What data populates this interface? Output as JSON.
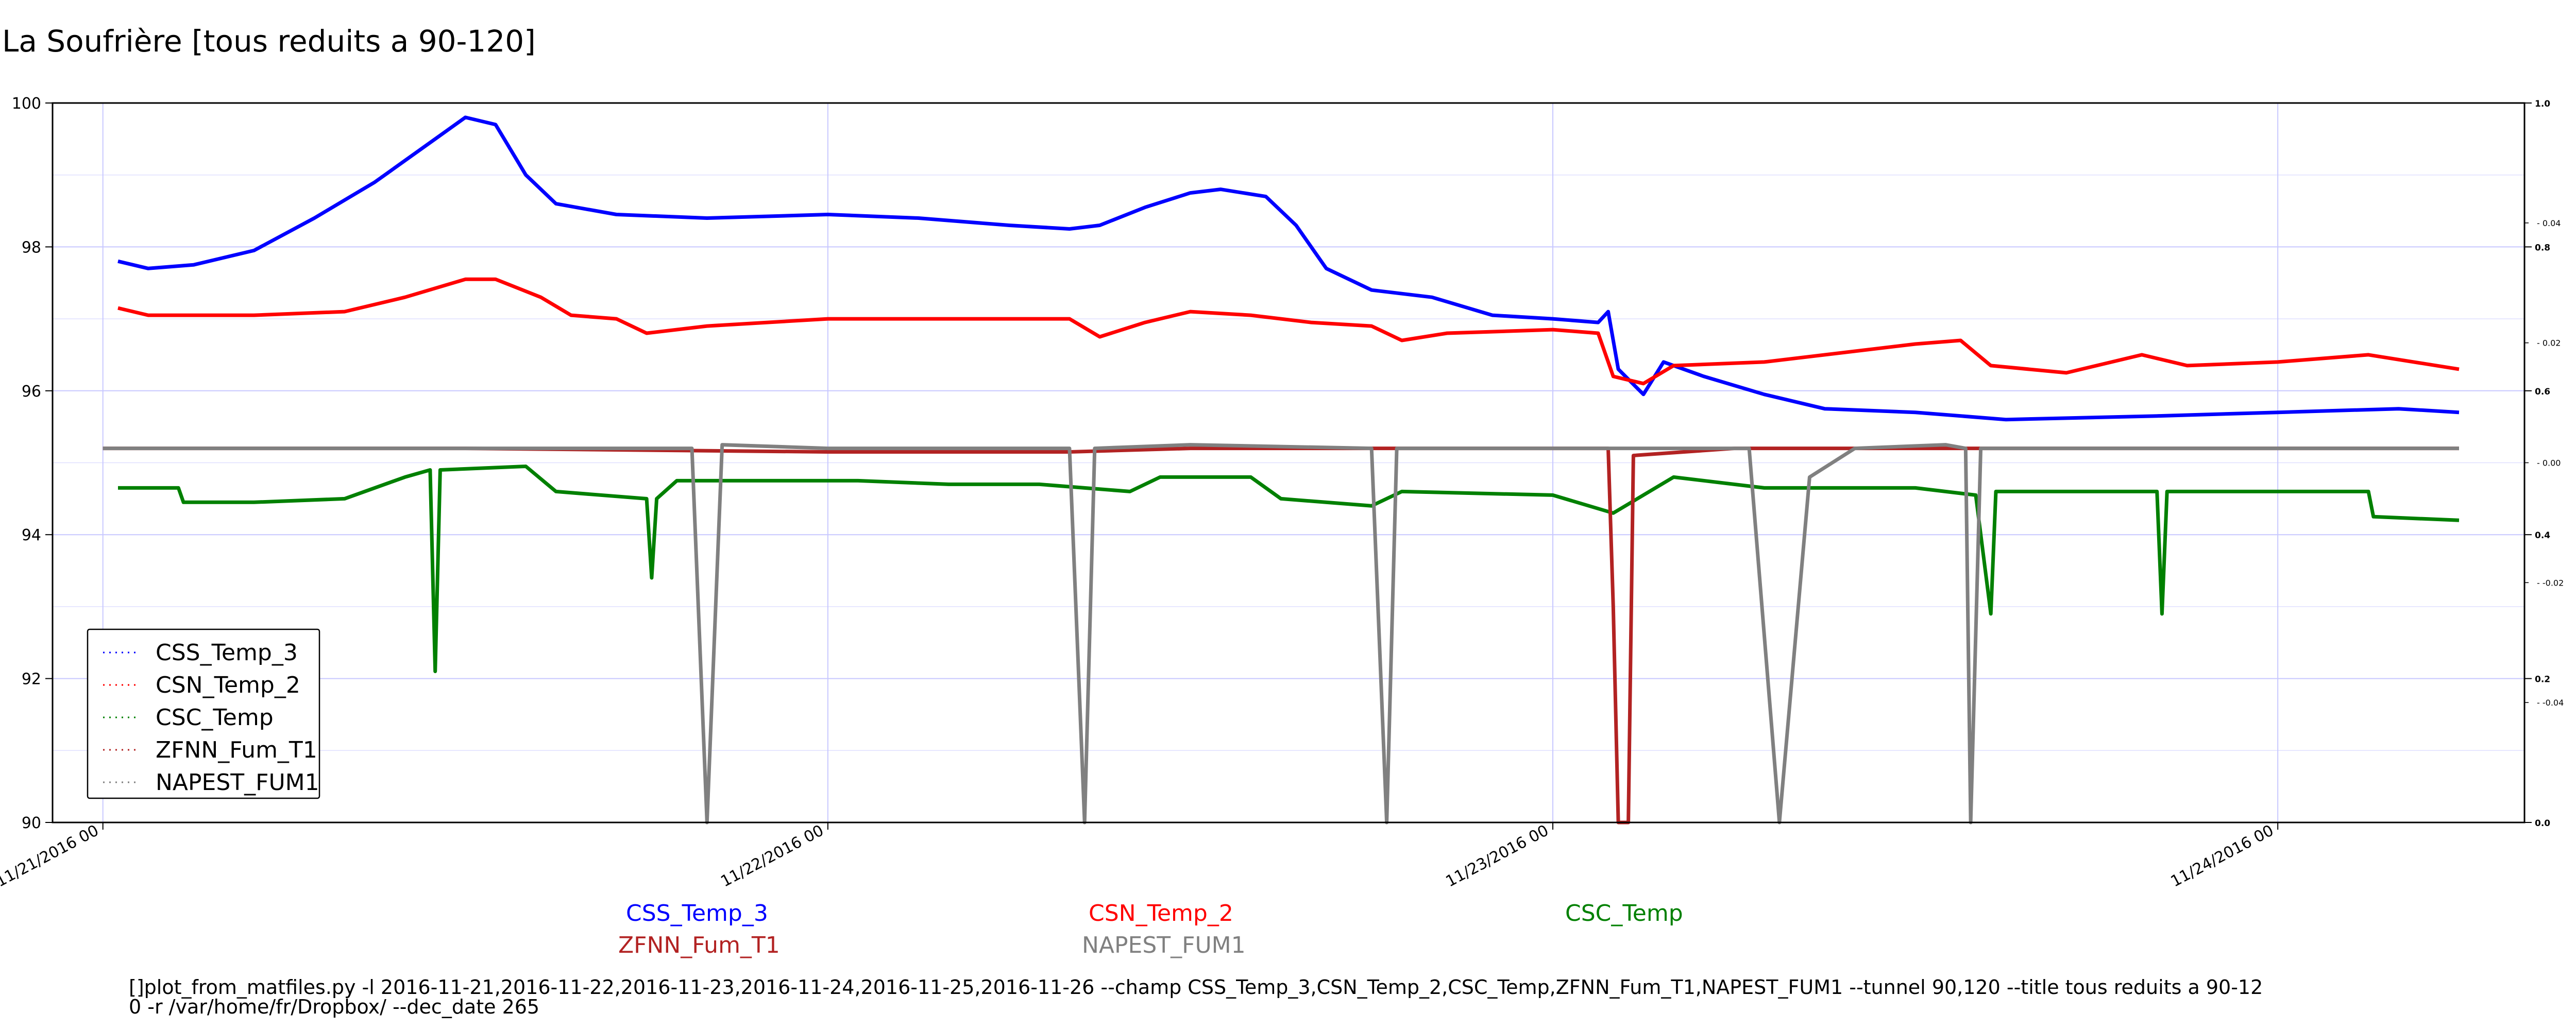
{
  "page_title": "La Soufrière [tous reduits a 90-120]",
  "command_text": {
    "line1": "[]plot_from_matfiles.py -l 2016-11-21,2016-11-22,2016-11-23,2016-11-24,2016-11-25,2016-11-26 --champ CSS_Temp_3,CSN_Temp_2,CSC_Temp,ZFNN_Fum_T1,NAPEST_FUM1 --tunnel 90,120 --title tous reduits a 90-12",
    "line2": "0 -r /var/home/fr/Dropbox/ --dec_date 265"
  },
  "bottom_legend": [
    {
      "label": "CSS_Temp_3",
      "color": "#0000ff"
    },
    {
      "label": "CSN_Temp_2",
      "color": "#ff0000"
    },
    {
      "label": "CSC_Temp",
      "color": "#008000"
    },
    {
      "label": "ZFNN_Fum_T1",
      "color": "#b22222"
    },
    {
      "label": "NAPEST_FUM1",
      "color": "#808080"
    }
  ],
  "chart_data": {
    "type": "line",
    "title": "La Soufrière [tous reduits a 90-120]",
    "x_type": "date",
    "xlim": [
      "2016-11-20T22:20",
      "2016-11-24T08:10"
    ],
    "ylim": [
      90,
      100
    ],
    "y_ticks": [
      90,
      92,
      94,
      96,
      98,
      100
    ],
    "x_ticks": [
      "2016-11-21T00:00",
      "2016-11-22T00:00",
      "2016-11-23T00:00",
      "2016-11-24T00:00"
    ],
    "x_tick_labels": [
      "11/21/2016 00",
      "11/22/2016 00",
      "11/23/2016 00",
      "11/24/2016 00"
    ],
    "y2_ticks": [
      "0.0",
      "0.2",
      "0.4",
      "0.6",
      "0.8",
      "1.0"
    ],
    "y2_minor_ticks": [
      "-0.04",
      "-0.02",
      "0.00",
      "0.02",
      "0.04"
    ],
    "grid": true,
    "legend_position": "bottom-left",
    "series": [
      {
        "name": "CSS_Temp_3",
        "color": "#0000ff",
        "points": [
          [
            "2016-11-21T00:30",
            97.8
          ],
          [
            "2016-11-21T01:30",
            97.7
          ],
          [
            "2016-11-21T03:00",
            97.75
          ],
          [
            "2016-11-21T05:00",
            97.95
          ],
          [
            "2016-11-21T07:00",
            98.4
          ],
          [
            "2016-11-21T09:00",
            98.9
          ],
          [
            "2016-11-21T11:00",
            99.5
          ],
          [
            "2016-11-21T12:00",
            99.8
          ],
          [
            "2016-11-21T13:00",
            99.7
          ],
          [
            "2016-11-21T14:00",
            99.0
          ],
          [
            "2016-11-21T15:00",
            98.6
          ],
          [
            "2016-11-21T17:00",
            98.45
          ],
          [
            "2016-11-21T20:00",
            98.4
          ],
          [
            "2016-11-22T00:00",
            98.45
          ],
          [
            "2016-11-22T03:00",
            98.4
          ],
          [
            "2016-11-22T06:00",
            98.3
          ],
          [
            "2016-11-22T08:00",
            98.25
          ],
          [
            "2016-11-22T09:00",
            98.3
          ],
          [
            "2016-11-22T10:30",
            98.55
          ],
          [
            "2016-11-22T12:00",
            98.75
          ],
          [
            "2016-11-22T13:00",
            98.8
          ],
          [
            "2016-11-22T14:30",
            98.7
          ],
          [
            "2016-11-22T15:30",
            98.3
          ],
          [
            "2016-11-22T16:30",
            97.7
          ],
          [
            "2016-11-22T18:00",
            97.4
          ],
          [
            "2016-11-22T20:00",
            97.3
          ],
          [
            "2016-11-22T22:00",
            97.05
          ],
          [
            "2016-11-23T00:00",
            97.0
          ],
          [
            "2016-11-23T01:30",
            96.95
          ],
          [
            "2016-11-23T01:50",
            97.1
          ],
          [
            "2016-11-23T02:10",
            96.3
          ],
          [
            "2016-11-23T03:00",
            95.95
          ],
          [
            "2016-11-23T03:40",
            96.4
          ],
          [
            "2016-11-23T05:00",
            96.2
          ],
          [
            "2016-11-23T07:00",
            95.95
          ],
          [
            "2016-11-23T09:00",
            95.75
          ],
          [
            "2016-11-23T12:00",
            95.7
          ],
          [
            "2016-11-23T15:00",
            95.6
          ],
          [
            "2016-11-23T20:00",
            95.65
          ],
          [
            "2016-11-24T00:00",
            95.7
          ],
          [
            "2016-11-24T04:00",
            95.75
          ],
          [
            "2016-11-24T06:00",
            95.7
          ]
        ]
      },
      {
        "name": "CSN_Temp_2",
        "color": "#ff0000",
        "points": [
          [
            "2016-11-21T00:30",
            97.15
          ],
          [
            "2016-11-21T01:30",
            97.05
          ],
          [
            "2016-11-21T05:00",
            97.05
          ],
          [
            "2016-11-21T08:00",
            97.1
          ],
          [
            "2016-11-21T10:00",
            97.3
          ],
          [
            "2016-11-21T12:00",
            97.55
          ],
          [
            "2016-11-21T13:00",
            97.55
          ],
          [
            "2016-11-21T14:30",
            97.3
          ],
          [
            "2016-11-21T15:30",
            97.05
          ],
          [
            "2016-11-21T17:00",
            97.0
          ],
          [
            "2016-11-21T18:00",
            96.8
          ],
          [
            "2016-11-21T20:00",
            96.9
          ],
          [
            "2016-11-22T00:00",
            97.0
          ],
          [
            "2016-11-22T04:00",
            97.0
          ],
          [
            "2016-11-22T08:00",
            97.0
          ],
          [
            "2016-11-22T09:00",
            96.75
          ],
          [
            "2016-11-22T10:30",
            96.95
          ],
          [
            "2016-11-22T12:00",
            97.1
          ],
          [
            "2016-11-22T14:00",
            97.05
          ],
          [
            "2016-11-22T16:00",
            96.95
          ],
          [
            "2016-11-22T18:00",
            96.9
          ],
          [
            "2016-11-22T19:00",
            96.7
          ],
          [
            "2016-11-22T20:30",
            96.8
          ],
          [
            "2016-11-23T00:00",
            96.85
          ],
          [
            "2016-11-23T01:30",
            96.8
          ],
          [
            "2016-11-23T02:00",
            96.2
          ],
          [
            "2016-11-23T03:00",
            96.1
          ],
          [
            "2016-11-23T04:00",
            96.35
          ],
          [
            "2016-11-23T07:00",
            96.4
          ],
          [
            "2016-11-23T12:00",
            96.65
          ],
          [
            "2016-11-23T13:30",
            96.7
          ],
          [
            "2016-11-23T14:30",
            96.35
          ],
          [
            "2016-11-23T17:00",
            96.25
          ],
          [
            "2016-11-23T19:30",
            96.5
          ],
          [
            "2016-11-23T21:00",
            96.35
          ],
          [
            "2016-11-24T00:00",
            96.4
          ],
          [
            "2016-11-24T03:00",
            96.5
          ],
          [
            "2016-11-24T04:30",
            96.4
          ],
          [
            "2016-11-24T06:00",
            96.3
          ]
        ]
      },
      {
        "name": "CSC_Temp",
        "color": "#008000",
        "points": [
          [
            "2016-11-21T00:30",
            94.65
          ],
          [
            "2016-11-21T02:30",
            94.65
          ],
          [
            "2016-11-21T02:40",
            94.45
          ],
          [
            "2016-11-21T05:00",
            94.45
          ],
          [
            "2016-11-21T08:00",
            94.5
          ],
          [
            "2016-11-21T10:00",
            94.8
          ],
          [
            "2016-11-21T10:50",
            94.9
          ],
          [
            "2016-11-21T11:00",
            92.1
          ],
          [
            "2016-11-21T11:10",
            94.9
          ],
          [
            "2016-11-21T14:00",
            94.95
          ],
          [
            "2016-11-21T15:00",
            94.6
          ],
          [
            "2016-11-21T18:00",
            94.5
          ],
          [
            "2016-11-21T18:10",
            93.4
          ],
          [
            "2016-11-21T18:20",
            94.5
          ],
          [
            "2016-11-21T19:00",
            94.75
          ],
          [
            "2016-11-22T01:00",
            94.75
          ],
          [
            "2016-11-22T04:00",
            94.7
          ],
          [
            "2016-11-22T07:00",
            94.7
          ],
          [
            "2016-11-22T10:00",
            94.6
          ],
          [
            "2016-11-22T11:00",
            94.8
          ],
          [
            "2016-11-22T14:00",
            94.8
          ],
          [
            "2016-11-22T15:00",
            94.5
          ],
          [
            "2016-11-22T18:00",
            94.4
          ],
          [
            "2016-11-22T19:00",
            94.6
          ],
          [
            "2016-11-23T00:00",
            94.55
          ],
          [
            "2016-11-23T02:00",
            94.3
          ],
          [
            "2016-11-23T04:00",
            94.8
          ],
          [
            "2016-11-23T07:00",
            94.65
          ],
          [
            "2016-11-23T12:00",
            94.65
          ],
          [
            "2016-11-23T14:00",
            94.55
          ],
          [
            "2016-11-23T14:30",
            92.9
          ],
          [
            "2016-11-23T14:40",
            94.6
          ],
          [
            "2016-11-23T20:00",
            94.6
          ],
          [
            "2016-11-23T20:10",
            92.9
          ],
          [
            "2016-11-23T20:20",
            94.6
          ],
          [
            "2016-11-24T03:00",
            94.6
          ],
          [
            "2016-11-24T03:10",
            94.25
          ],
          [
            "2016-11-24T06:00",
            94.2
          ]
        ]
      },
      {
        "name": "ZFNN_Fum_T1",
        "color": "#b22222",
        "points": [
          [
            "2016-11-21T00:00",
            95.2
          ],
          [
            "2016-11-21T12:00",
            95.2
          ],
          [
            "2016-11-22T00:00",
            95.15
          ],
          [
            "2016-11-22T08:00",
            95.15
          ],
          [
            "2016-11-22T12:00",
            95.2
          ],
          [
            "2016-11-23T01:50",
            95.2
          ],
          [
            "2016-11-23T02:00",
            93.0
          ],
          [
            "2016-11-23T02:10",
            90.0
          ],
          [
            "2016-11-23T02:30",
            90.0
          ],
          [
            "2016-11-23T02:40",
            95.1
          ],
          [
            "2016-11-23T06:00",
            95.2
          ],
          [
            "2016-11-24T00:00",
            95.2
          ],
          [
            "2016-11-24T06:00",
            95.2
          ]
        ]
      },
      {
        "name": "NAPEST_FUM1",
        "color": "#808080",
        "points": [
          [
            "2016-11-21T00:00",
            95.2
          ],
          [
            "2016-11-21T10:00",
            95.2
          ],
          [
            "2016-11-21T17:00",
            95.2
          ],
          [
            "2016-11-21T19:30",
            95.2
          ],
          [
            "2016-11-21T20:00",
            90.0
          ],
          [
            "2016-11-21T20:30",
            95.25
          ],
          [
            "2016-11-22T00:00",
            95.2
          ],
          [
            "2016-11-22T08:00",
            95.2
          ],
          [
            "2016-11-22T08:30",
            90.0
          ],
          [
            "2016-11-22T08:50",
            95.2
          ],
          [
            "2016-11-22T12:00",
            95.25
          ],
          [
            "2016-11-22T18:00",
            95.2
          ],
          [
            "2016-11-22T18:30",
            90.0
          ],
          [
            "2016-11-22T18:50",
            95.2
          ],
          [
            "2016-11-23T01:30",
            95.2
          ],
          [
            "2016-11-23T02:00",
            95.2
          ],
          [
            "2016-11-23T06:30",
            95.2
          ],
          [
            "2016-11-23T07:30",
            90.0
          ],
          [
            "2016-11-23T08:30",
            94.8
          ],
          [
            "2016-11-23T10:00",
            95.2
          ],
          [
            "2016-11-23T13:00",
            95.25
          ],
          [
            "2016-11-23T13:40",
            95.2
          ],
          [
            "2016-11-23T13:50",
            90.0
          ],
          [
            "2016-11-23T14:10",
            95.2
          ],
          [
            "2016-11-24T00:00",
            95.2
          ],
          [
            "2016-11-24T06:00",
            95.2
          ]
        ]
      }
    ]
  }
}
